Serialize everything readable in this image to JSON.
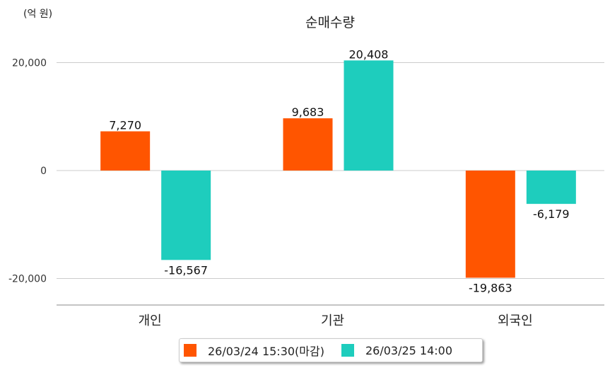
{
  "chart_data": {
    "type": "bar",
    "title": "순매수량",
    "unit_label": "(억 원)",
    "categories": [
      "개인",
      "기관",
      "외국인"
    ],
    "series": [
      {
        "name": "26/03/24 15:30(마감)",
        "color": "#FF5500",
        "values": [
          7270,
          9683,
          -19863
        ],
        "labels": [
          "7,270",
          "9,683",
          "-19,863"
        ]
      },
      {
        "name": "26/03/25 14:00",
        "color": "#1ECDBD",
        "values": [
          -16567,
          20408,
          -6179
        ],
        "labels": [
          "-16,567",
          "20,408",
          "-6,179"
        ]
      }
    ],
    "yticks": [
      20000,
      0,
      -20000
    ],
    "ytick_labels": [
      "20,000",
      "0",
      "-20,000"
    ],
    "ylim": [
      -24800,
      25000
    ],
    "grid": true,
    "legend_position": "bottom"
  }
}
